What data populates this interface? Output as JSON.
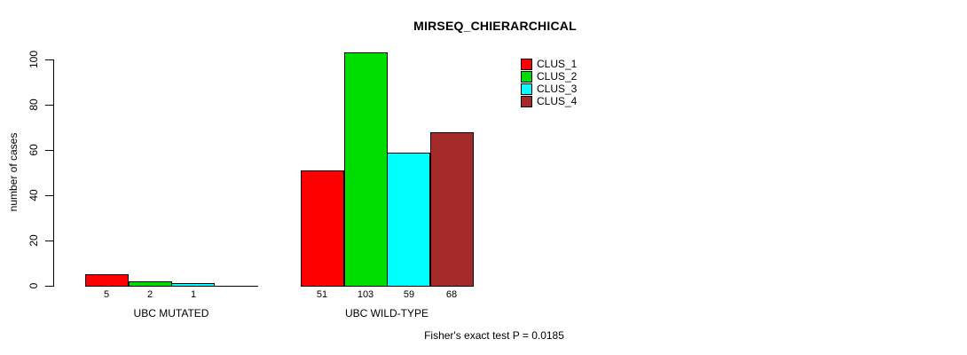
{
  "chart_data": {
    "type": "bar",
    "title": "MIRSEQ_CHIERARCHICAL",
    "ylabel": "number of cases",
    "xlabel": "",
    "ylim": [
      0,
      100
    ],
    "yticks": [
      0,
      20,
      40,
      60,
      80,
      100
    ],
    "grid": false,
    "legend_position": "top-right",
    "categories": [
      "UBC MUTATED",
      "UBC WILD-TYPE"
    ],
    "series": [
      {
        "name": "CLUS_1",
        "color": "#FF0000",
        "values": [
          5,
          51
        ]
      },
      {
        "name": "CLUS_2",
        "color": "#00DD00",
        "values": [
          2,
          103
        ]
      },
      {
        "name": "CLUS_3",
        "color": "#00FFFF",
        "values": [
          1,
          59
        ]
      },
      {
        "name": "CLUS_4",
        "color": "#A52A2A",
        "values": [
          0,
          68
        ]
      }
    ],
    "bar_labels": [
      [
        "5",
        "2",
        "1",
        ""
      ],
      [
        "51",
        "103",
        "59",
        "68"
      ]
    ],
    "annotation": "Fisher's exact test P = 0.0185"
  },
  "colors": {
    "axis": "#000000",
    "text": "#000000",
    "background": "#ffffff"
  }
}
